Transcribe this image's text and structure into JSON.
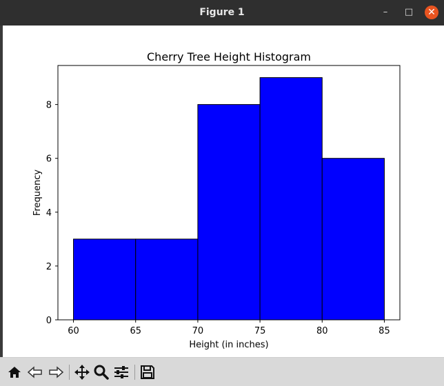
{
  "window": {
    "title": "Figure 1",
    "minimize_glyph": "–",
    "maximize_glyph": "□",
    "close_glyph": "✕"
  },
  "toolbar": {
    "buttons": [
      {
        "name": "home-icon"
      },
      {
        "name": "back-arrow-icon"
      },
      {
        "name": "forward-arrow-icon"
      },
      {
        "name": "pan-move-icon"
      },
      {
        "name": "zoom-magnifier-icon"
      },
      {
        "name": "configure-subplots-icon"
      },
      {
        "name": "save-floppy-icon"
      }
    ]
  },
  "colors": {
    "bar_fill": "#0000ff",
    "bar_edge": "#000000",
    "close_button": "#e95420"
  },
  "chart_data": {
    "type": "bar",
    "title": "Cherry Tree Height Histogram",
    "xlabel": "Height (in inches)",
    "ylabel": "Frequency",
    "bins": [
      {
        "start": 60,
        "end": 65,
        "count": 3
      },
      {
        "start": 65,
        "end": 70,
        "count": 3
      },
      {
        "start": 70,
        "end": 75,
        "count": 8
      },
      {
        "start": 75,
        "end": 80,
        "count": 9
      },
      {
        "start": 80,
        "end": 85,
        "count": 6
      }
    ],
    "xlim": [
      58.75,
      86.25
    ],
    "ylim": [
      0,
      9.45
    ],
    "xticks": [
      60,
      65,
      70,
      75,
      80,
      85
    ],
    "yticks": [
      0,
      2,
      4,
      6,
      8
    ],
    "grid": false,
    "legend": "none"
  }
}
